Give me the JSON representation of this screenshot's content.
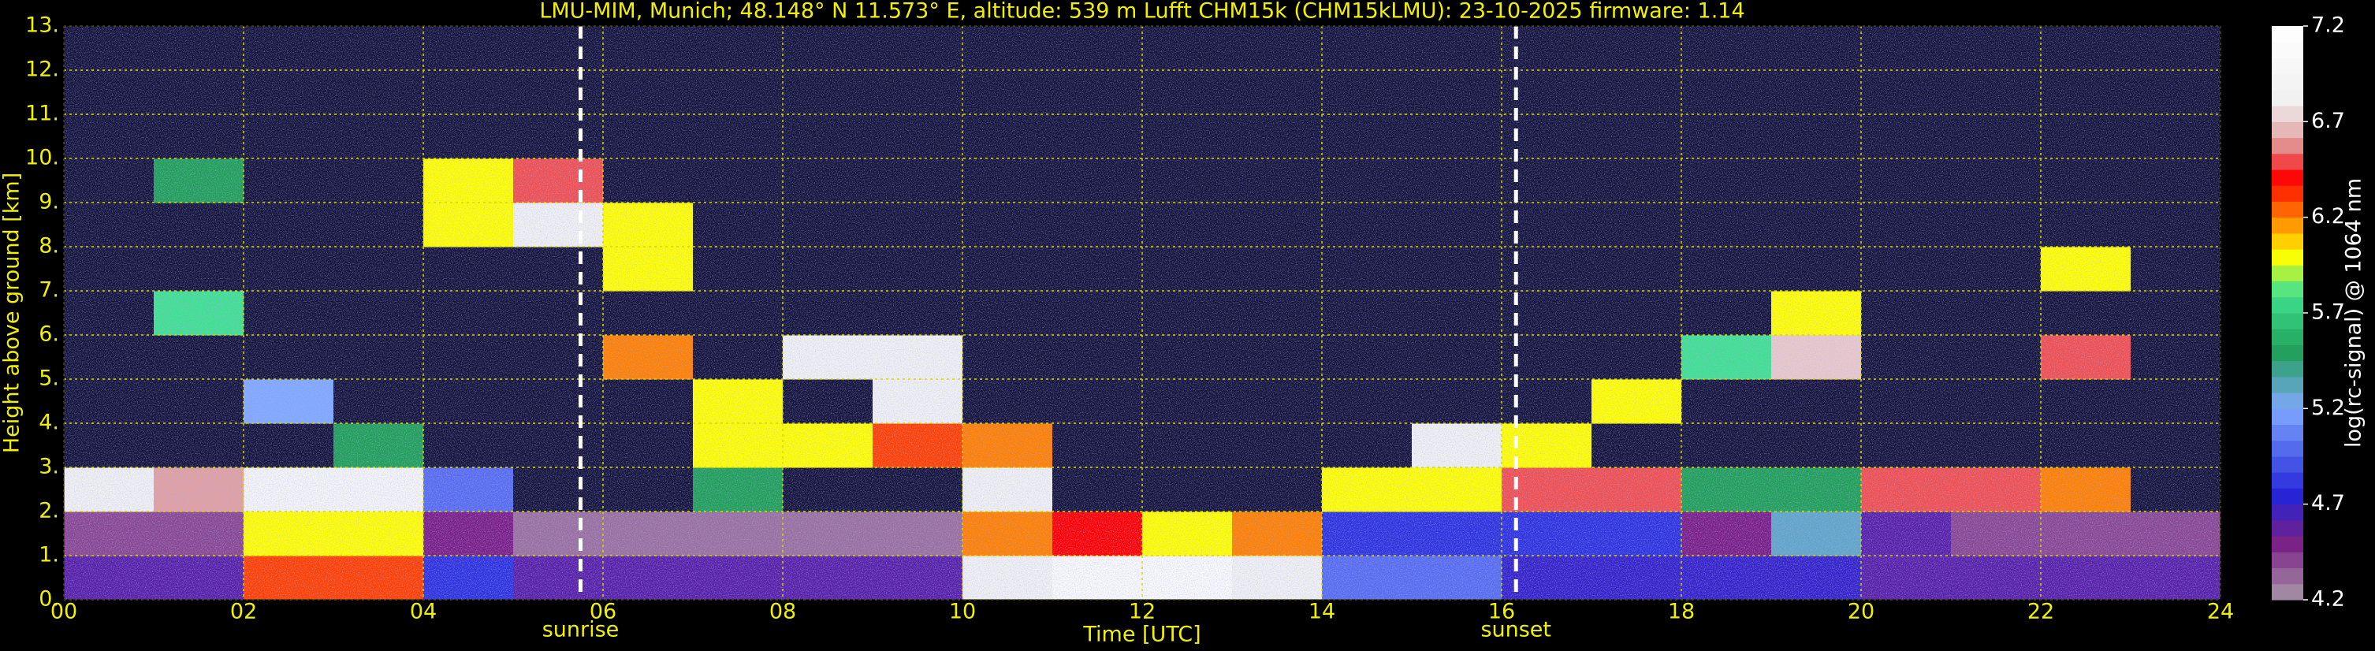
{
  "chart_data": {
    "type": "heatmap",
    "title": "LMU-MIM, Munich; 48.148° N 11.573° E, altitude: 539 m    Lufft CHM15k (CHM15kLMU): 23-10-2025    firmware: 1.14",
    "x_label": "Time [UTC]",
    "y_label": "Height above ground [km]",
    "colorbar_label": "log(rc-signal) @ 1064 nm",
    "xlim": [
      0,
      24
    ],
    "xticks": [
      {
        "value": 0,
        "label": "00"
      },
      {
        "value": 2,
        "label": "02"
      },
      {
        "value": 4,
        "label": "04"
      },
      {
        "value": 6,
        "label": "06"
      },
      {
        "value": 8,
        "label": "08"
      },
      10,
      12,
      14,
      16,
      18,
      20,
      22,
      24
    ],
    "ylim": [
      0,
      13
    ],
    "yticks": [
      {
        "value": 0,
        "label": "0."
      },
      {
        "value": 1,
        "label": "1."
      },
      {
        "value": 2,
        "label": "2."
      },
      {
        "value": 3,
        "label": "3."
      },
      {
        "value": 4,
        "label": "4."
      },
      {
        "value": 5,
        "label": "5."
      },
      {
        "value": 6,
        "label": "6."
      },
      {
        "value": 7,
        "label": "7."
      },
      {
        "value": 8,
        "label": "8."
      },
      {
        "value": 9,
        "label": "9."
      },
      {
        "value": 10,
        "label": "10."
      },
      {
        "value": 11,
        "label": "11."
      },
      {
        "value": 12,
        "label": "12."
      },
      {
        "value": 13,
        "label": "13."
      }
    ],
    "zlim": [
      4.2,
      7.2
    ],
    "zticks": [
      4.2,
      4.7,
      5.2,
      5.7,
      6.2,
      6.7,
      7.2
    ],
    "grid": true,
    "grid_color": "#d8d800",
    "under_color": "#14143a",
    "colorscale": [
      {
        "value": 4.2,
        "color": "#a898a8"
      },
      {
        "value": 4.5,
        "color": "#7a1f86"
      },
      {
        "value": 4.75,
        "color": "#2424d8"
      },
      {
        "value": 5.2,
        "color": "#80a8ff"
      },
      {
        "value": 5.5,
        "color": "#20a058"
      },
      {
        "value": 5.8,
        "color": "#40e090"
      },
      {
        "value": 6.0,
        "color": "#ffff00"
      },
      {
        "value": 6.2,
        "color": "#ff8000"
      },
      {
        "value": 6.4,
        "color": "#ff0000"
      },
      {
        "value": 6.6,
        "color": "#e0a0a0"
      },
      {
        "value": 6.8,
        "color": "#f0f0f0"
      },
      {
        "value": 7.2,
        "color": "#ffffff"
      }
    ],
    "annotations": [
      {
        "x": 5.75,
        "text": "sunrise"
      },
      {
        "x": 16.16,
        "text": "sunset"
      }
    ],
    "x_bins": [
      0,
      1,
      2,
      3,
      4,
      5,
      6,
      7,
      8,
      9,
      10,
      11,
      12,
      13,
      14,
      15,
      16,
      17,
      18,
      19,
      20,
      21,
      22,
      23,
      24
    ],
    "y_bins": [
      0,
      1,
      2,
      3,
      4,
      5,
      6,
      7,
      8,
      9,
      10,
      11,
      12,
      13
    ],
    "z": [
      [
        4.6,
        4.6,
        6.3,
        6.3,
        4.8,
        4.6,
        4.6,
        4.6,
        4.6,
        4.6,
        6.8,
        7.0,
        7.0,
        6.8,
        5.0,
        5.0,
        4.7,
        4.7,
        4.7,
        4.7,
        4.6,
        4.6,
        4.6,
        4.6
      ],
      [
        4.4,
        4.4,
        6.0,
        6.0,
        4.5,
        4.3,
        4.3,
        4.3,
        4.3,
        4.3,
        6.2,
        6.4,
        6.0,
        6.2,
        4.8,
        4.8,
        4.8,
        4.8,
        4.5,
        5.3,
        4.6,
        4.4,
        4.4,
        4.4
      ],
      [
        6.8,
        6.6,
        6.9,
        6.9,
        5.0,
        4,
        4,
        5.5,
        4,
        4,
        6.8,
        4,
        4,
        4,
        6.0,
        6.0,
        6.5,
        6.5,
        5.5,
        5.5,
        6.5,
        6.5,
        6.2,
        4
      ],
      [
        4,
        4,
        4,
        5.5,
        4,
        4,
        4,
        6.0,
        6.0,
        6.3,
        6.2,
        4,
        4,
        4,
        4,
        6.8,
        6.0,
        4,
        4,
        4,
        4,
        4,
        4,
        4
      ],
      [
        4,
        4,
        5.2,
        4,
        4,
        4,
        4,
        6.0,
        4,
        6.8,
        4,
        4,
        4,
        4,
        4,
        4,
        4,
        6.0,
        4,
        4,
        4,
        4,
        4,
        4
      ],
      [
        4,
        4,
        4,
        4,
        4,
        4,
        6.2,
        4,
        6.8,
        6.8,
        4,
        4,
        4,
        4,
        4,
        4,
        4,
        4,
        5.8,
        6.7,
        4,
        4,
        6.5,
        4
      ],
      [
        4,
        5.8,
        4,
        4,
        4,
        4,
        4,
        4,
        4,
        4,
        4,
        4,
        4,
        4,
        4,
        4,
        4,
        4,
        4,
        6.0,
        4,
        4,
        4,
        4
      ],
      [
        4,
        4,
        4,
        4,
        4,
        4,
        6.0,
        4,
        4,
        4,
        4,
        4,
        4,
        4,
        4,
        4,
        4,
        4,
        4,
        4,
        4,
        4,
        6.0,
        4
      ],
      [
        4,
        4,
        4,
        4,
        6.0,
        6.8,
        6.0,
        4,
        4,
        4,
        4,
        4,
        4,
        4,
        4,
        4,
        4,
        4,
        4,
        4,
        4,
        4,
        4,
        4
      ],
      [
        4,
        5.5,
        4,
        4,
        6.0,
        6.5,
        4,
        4,
        4,
        4,
        4,
        4,
        4,
        4,
        4,
        4,
        4,
        4,
        4,
        4,
        4,
        4,
        4,
        4
      ],
      [
        4,
        4,
        4,
        4,
        4,
        4,
        4,
        4,
        4,
        4,
        4,
        4,
        4,
        4,
        4,
        4,
        4,
        4,
        4,
        4,
        4,
        4,
        4,
        4
      ],
      [
        4,
        4,
        4,
        4,
        4,
        4,
        4,
        4,
        4,
        4,
        4,
        4,
        4,
        4,
        4,
        4,
        4,
        4,
        4,
        4,
        4,
        4,
        4,
        4
      ],
      [
        4,
        4,
        4,
        4,
        4,
        4,
        4,
        4,
        4,
        4,
        4,
        4,
        4,
        4,
        4,
        4,
        4,
        4,
        4,
        4,
        4,
        4,
        4,
        4
      ]
    ]
  }
}
